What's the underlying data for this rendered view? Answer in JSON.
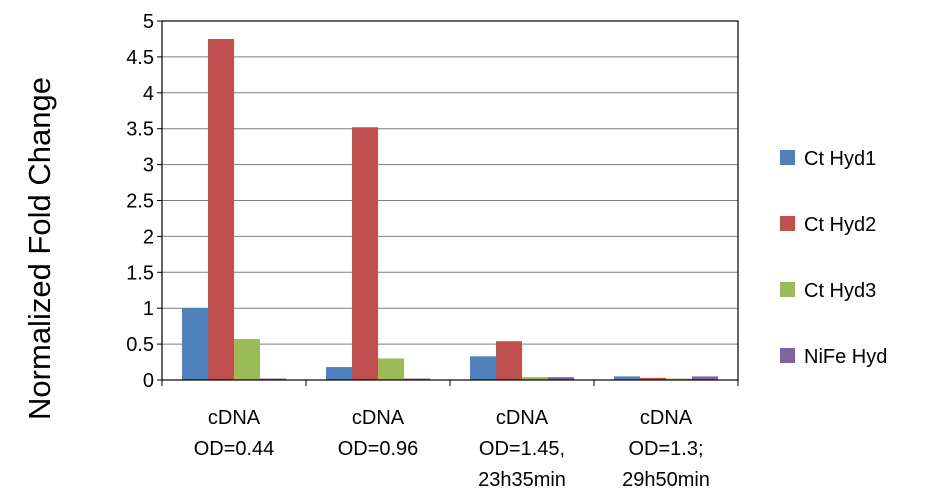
{
  "chart_data": {
    "type": "bar",
    "title": "",
    "xlabel": "",
    "ylabel": "Normalized Fold Change",
    "ylim": [
      0,
      5
    ],
    "yticks": [
      "0",
      "0.5",
      "1",
      "1.5",
      "2",
      "2.5",
      "3",
      "3.5",
      "4",
      "4.5",
      "5"
    ],
    "grid": true,
    "legend_position": "right",
    "categories": [
      [
        "cDNA",
        "OD=0.44"
      ],
      [
        "cDNA",
        "OD=0.96"
      ],
      [
        "cDNA",
        "OD=1.45,",
        "23h35min"
      ],
      [
        "cDNA",
        "OD=1.3;",
        "29h50min"
      ]
    ],
    "series": [
      {
        "name": "Ct Hyd1",
        "color": "#4f81bd",
        "values": [
          1.0,
          0.18,
          0.33,
          0.05
        ]
      },
      {
        "name": "Ct Hyd2",
        "color": "#c0504d",
        "values": [
          4.75,
          3.52,
          0.54,
          0.03
        ]
      },
      {
        "name": "Ct Hyd3",
        "color": "#9bbb59",
        "values": [
          0.57,
          0.3,
          0.04,
          0.02
        ]
      },
      {
        "name": "NiFe Hyd",
        "color": "#8064a2",
        "values": [
          0.02,
          0.02,
          0.04,
          0.05
        ]
      }
    ]
  }
}
